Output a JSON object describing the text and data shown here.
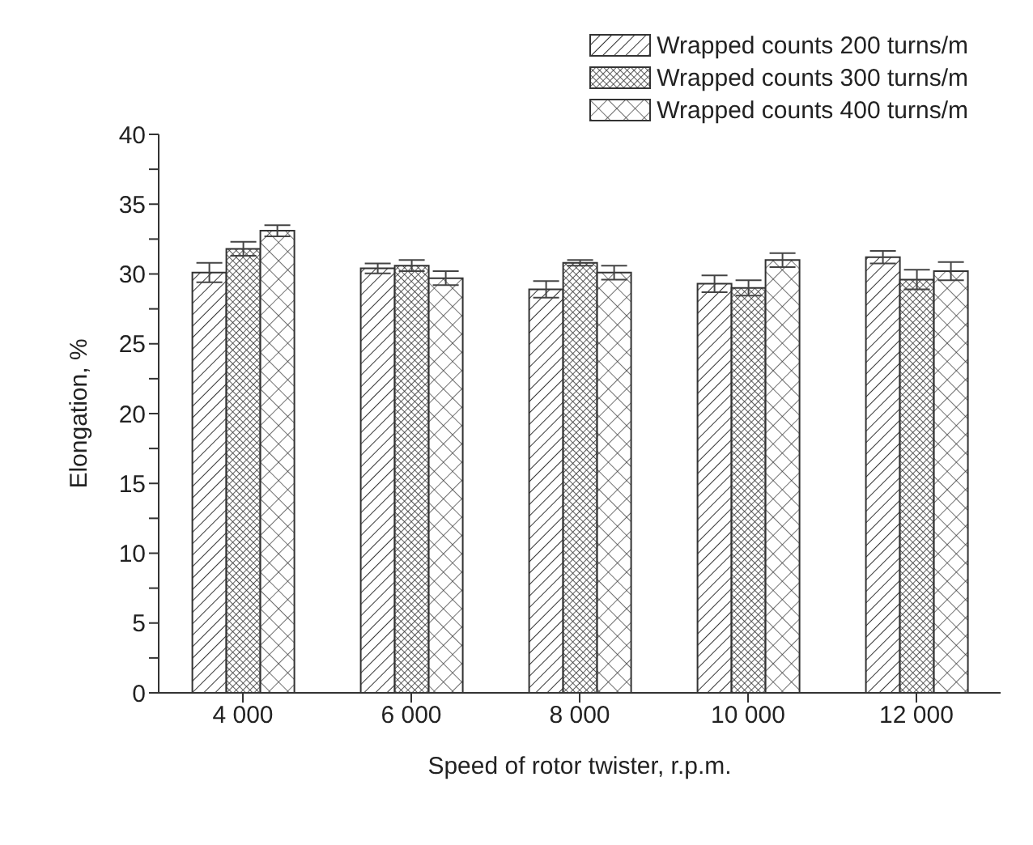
{
  "chart_data": {
    "type": "bar",
    "xlabel": "Speed of rotor twister, r.p.m.",
    "ylabel": "Elongation, %",
    "categories": [
      "4 000",
      "6 000",
      "8 000",
      "10 000",
      "12 000"
    ],
    "series": [
      {
        "name": "Wrapped counts 200 turns/m",
        "color": "#333333",
        "values": [
          30.1,
          30.4,
          28.9,
          29.3,
          31.2
        ],
        "errors": [
          0.7,
          0.35,
          0.6,
          0.6,
          0.45
        ]
      },
      {
        "name": "Wrapped counts 300 turns/m",
        "color": "#333333",
        "values": [
          31.8,
          30.6,
          30.8,
          29.0,
          29.6
        ],
        "errors": [
          0.5,
          0.4,
          0.2,
          0.55,
          0.7
        ]
      },
      {
        "name": "Wrapped counts 400 turns/m",
        "color": "#333333",
        "values": [
          33.1,
          29.7,
          30.1,
          31.0,
          30.2
        ],
        "errors": [
          0.4,
          0.5,
          0.5,
          0.5,
          0.65
        ]
      }
    ],
    "ylim": [
      0,
      40
    ],
    "yticks": [
      0,
      {
        "value": 2.5,
        "label": null
      },
      5,
      {
        "value": 7.5,
        "label": null
      },
      10,
      {
        "value": 12.5,
        "label": null
      },
      15,
      {
        "value": 17.5,
        "label": null
      },
      20,
      {
        "value": 22.5,
        "label": null
      },
      25,
      {
        "value": 27.5,
        "label": null
      },
      30,
      {
        "value": 32.5,
        "label": null
      },
      35,
      {
        "value": 37.5,
        "label": null
      },
      40
    ],
    "grid": false,
    "legend": "top right"
  }
}
